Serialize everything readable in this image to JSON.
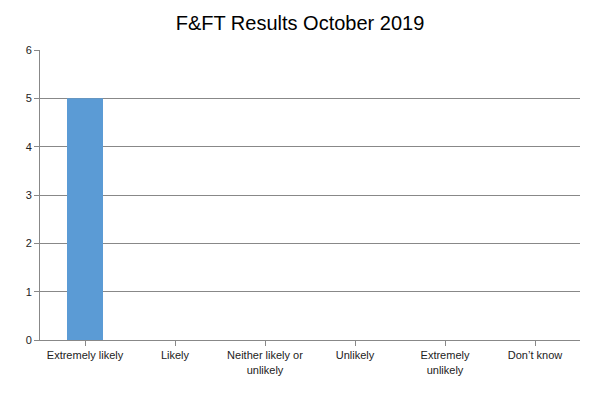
{
  "chart_data": {
    "type": "bar",
    "title": "F&FT Results October 2019",
    "categories": [
      "Extremely likely",
      "Likely",
      "Neither likely or unlikely",
      "Unlikely",
      "Extremely unlikely",
      "Don’t know"
    ],
    "values": [
      5,
      0,
      0,
      0,
      0,
      0
    ],
    "color": "#5b9bd5",
    "ylim": [
      0,
      6
    ],
    "yticks": [
      0,
      1,
      2,
      3,
      4,
      5,
      6
    ],
    "grid": true
  }
}
